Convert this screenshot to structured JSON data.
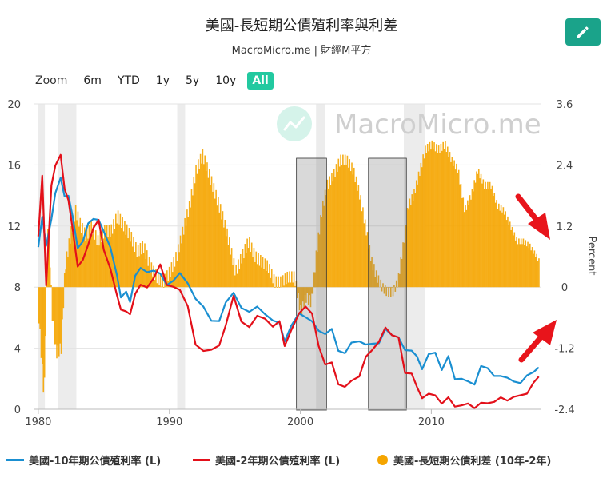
{
  "header": {
    "title": "美國-長短期公債殖利率與利差",
    "subtitle": "MacroMicro.me | 財經M平方"
  },
  "zoom": {
    "label": "Zoom",
    "options": [
      "6m",
      "YTD",
      "1y",
      "5y",
      "10y",
      "All"
    ],
    "active": "All"
  },
  "watermark": {
    "text": "MacroMicro.me"
  },
  "chart_data": {
    "type": "line",
    "title": "美國-長短期公債殖利率與利差",
    "left_axis": {
      "ticks": [
        "0",
        "4",
        "8",
        "12",
        "16",
        "20"
      ],
      "ylim": [
        0,
        20
      ]
    },
    "right_axis": {
      "label": "Percent",
      "ticks": [
        "-2.4",
        "-1.2",
        "0",
        "1.2",
        "2.4",
        "3.6"
      ],
      "ylim": [
        -2.4,
        3.6
      ]
    },
    "x_axis": {
      "ticks": [
        "1980",
        "1990",
        "2000",
        "2010"
      ],
      "xlim": [
        1979.7,
        2018.4
      ]
    },
    "recession_shading": [
      [
        1980.0,
        1980.5
      ],
      [
        1981.5,
        1982.9
      ],
      [
        1990.6,
        1991.2
      ],
      [
        2001.2,
        2001.9
      ],
      [
        2007.9,
        2009.5
      ]
    ],
    "highlight_boxes": [
      [
        1999.7,
        2002.0
      ],
      [
        2005.2,
        2008.1
      ]
    ],
    "colors": {
      "ten_year": "#1a8fd1",
      "two_year": "#e3101a",
      "spread": "#f5a500",
      "arrow": "#e8141b"
    },
    "series": [
      {
        "name": "美國-10年期公債殖利率 (L)",
        "axis": "left",
        "x": [
          1980.0,
          1980.3,
          1980.6,
          1981.0,
          1981.3,
          1981.7,
          1982.0,
          1982.3,
          1982.6,
          1983.0,
          1983.4,
          1983.8,
          1984.2,
          1984.6,
          1985.0,
          1985.5,
          1986.0,
          1986.3,
          1986.7,
          1987.0,
          1987.4,
          1987.8,
          1988.3,
          1988.8,
          1989.3,
          1989.8,
          1990.3,
          1990.8,
          1991.4,
          1992.0,
          1992.6,
          1993.2,
          1993.8,
          1994.3,
          1994.9,
          1995.5,
          1996.1,
          1996.7,
          1997.3,
          1997.9,
          1998.4,
          1998.8,
          1999.3,
          1999.9,
          2000.4,
          2000.9,
          2001.4,
          2001.9,
          2002.4,
          2002.9,
          2003.4,
          2003.9,
          2004.5,
          2005.0,
          2005.5,
          2006.0,
          2006.5,
          2007.0,
          2007.5,
          2008.0,
          2008.5,
          2008.9,
          2009.3,
          2009.8,
          2010.3,
          2010.8,
          2011.3,
          2011.8,
          2012.3,
          2012.8,
          2013.3,
          2013.8,
          2014.3,
          2014.8,
          2015.3,
          2015.8,
          2016.3,
          2016.8,
          2017.3,
          2017.8,
          2018.2
        ],
        "y": [
          10.8,
          12.5,
          10.6,
          12.6,
          14.0,
          15.3,
          14.0,
          13.8,
          12.8,
          10.5,
          11.0,
          12.2,
          12.4,
          12.5,
          11.5,
          10.6,
          8.9,
          7.4,
          7.6,
          7.2,
          8.6,
          9.4,
          8.8,
          9.2,
          8.9,
          8.0,
          8.6,
          8.8,
          8.1,
          7.3,
          6.9,
          5.8,
          5.6,
          7.1,
          7.8,
          6.6,
          6.2,
          6.7,
          6.4,
          5.9,
          5.5,
          4.6,
          5.3,
          6.2,
          6.2,
          5.6,
          5.2,
          5.0,
          5.1,
          4.0,
          3.6,
          4.3,
          4.6,
          4.2,
          4.2,
          4.5,
          5.1,
          4.9,
          4.8,
          3.7,
          4.0,
          3.3,
          2.8,
          3.5,
          3.7,
          2.7,
          3.3,
          2.1,
          2.0,
          1.7,
          1.8,
          2.7,
          2.7,
          2.3,
          2.0,
          2.2,
          1.8,
          1.6,
          2.4,
          2.3,
          2.9
        ]
      },
      {
        "name": "美國-2年期公債殖利率 (L)",
        "axis": "left",
        "x": [
          1980.0,
          1980.3,
          1980.6,
          1981.0,
          1981.3,
          1981.7,
          1982.0,
          1982.3,
          1982.6,
          1983.0,
          1983.4,
          1983.8,
          1984.2,
          1984.6,
          1985.0,
          1985.5,
          1986.0,
          1986.3,
          1986.7,
          1987.0,
          1987.4,
          1987.8,
          1988.3,
          1988.8,
          1989.3,
          1989.8,
          1990.3,
          1990.8,
          1991.4,
          1992.0,
          1992.6,
          1993.2,
          1993.8,
          1994.3,
          1994.9,
          1995.5,
          1996.1,
          1996.7,
          1997.3,
          1997.9,
          1998.4,
          1998.8,
          1999.3,
          1999.9,
          2000.4,
          2000.9,
          2001.4,
          2001.9,
          2002.4,
          2002.9,
          2003.4,
          2003.9,
          2004.5,
          2005.0,
          2005.5,
          2006.0,
          2006.5,
          2007.0,
          2007.5,
          2008.0,
          2008.5,
          2008.9,
          2009.3,
          2009.8,
          2010.3,
          2010.8,
          2011.3,
          2011.8,
          2012.3,
          2012.8,
          2013.3,
          2013.8,
          2014.3,
          2014.8,
          2015.3,
          2015.8,
          2016.3,
          2016.8,
          2017.3,
          2017.8,
          2018.2
        ],
        "y": [
          11.5,
          15.2,
          8.0,
          14.8,
          15.8,
          16.8,
          14.5,
          13.5,
          12.0,
          9.3,
          9.8,
          10.8,
          11.8,
          12.5,
          10.3,
          9.2,
          7.6,
          6.6,
          6.3,
          6.4,
          7.4,
          8.3,
          7.8,
          8.7,
          9.5,
          8.0,
          8.2,
          7.7,
          6.6,
          4.3,
          4.0,
          3.9,
          4.0,
          5.6,
          7.6,
          5.7,
          5.2,
          6.1,
          6.1,
          5.5,
          5.6,
          4.3,
          5.0,
          6.2,
          6.9,
          6.1,
          4.2,
          3.0,
          2.9,
          1.8,
          1.4,
          1.8,
          2.3,
          3.4,
          3.8,
          4.6,
          5.2,
          4.9,
          4.8,
          2.2,
          2.5,
          1.3,
          0.9,
          0.9,
          0.9,
          0.5,
          0.6,
          0.3,
          0.25,
          0.25,
          0.25,
          0.3,
          0.4,
          0.6,
          0.6,
          0.7,
          0.8,
          0.8,
          1.2,
          1.6,
          2.3
        ]
      },
      {
        "name": "美國-長短期公債利差 (10年-2年)",
        "axis": "right",
        "type": "bar",
        "x": [
          1980.0,
          1980.4,
          1980.7,
          1981.0,
          1981.3,
          1981.7,
          1982.0,
          1982.4,
          1982.8,
          1983.2,
          1983.6,
          1984.0,
          1984.5,
          1985.0,
          1985.5,
          1986.0,
          1986.5,
          1987.0,
          1987.5,
          1988.0,
          1988.5,
          1989.0,
          1989.5,
          1990.0,
          1990.5,
          1991.0,
          1991.5,
          1992.0,
          1992.5,
          1993.0,
          1993.5,
          1994.0,
          1994.5,
          1995.0,
          1995.5,
          1996.0,
          1996.5,
          1997.0,
          1997.5,
          1998.0,
          1998.5,
          1999.0,
          1999.5,
          2000.0,
          2000.4,
          2000.8,
          2001.2,
          2001.6,
          2002.0,
          2002.5,
          2003.0,
          2003.5,
          2004.0,
          2004.5,
          2005.0,
          2005.4,
          2005.8,
          2006.2,
          2006.6,
          2007.0,
          2007.4,
          2007.8,
          2008.2,
          2008.6,
          2009.0,
          2009.5,
          2010.0,
          2010.5,
          2011.0,
          2011.5,
          2012.0,
          2012.5,
          2013.0,
          2013.5,
          2014.0,
          2014.5,
          2015.0,
          2015.5,
          2016.0,
          2016.5,
          2017.0,
          2017.5,
          2018.0,
          2018.2
        ],
        "y": [
          -0.6,
          -2.2,
          1.5,
          -0.5,
          -1.3,
          -1.2,
          0.4,
          1.0,
          1.5,
          1.2,
          1.0,
          1.2,
          0.9,
          1.1,
          1.1,
          1.4,
          1.2,
          1.0,
          0.7,
          0.8,
          0.4,
          0.2,
          0.1,
          0.3,
          0.6,
          1.1,
          1.6,
          2.3,
          2.6,
          2.2,
          1.8,
          1.4,
          0.9,
          0.3,
          0.6,
          0.9,
          0.6,
          0.5,
          0.4,
          0.1,
          0.1,
          0.2,
          0.2,
          -0.5,
          -0.2,
          -0.3,
          0.7,
          1.5,
          2.0,
          2.2,
          2.5,
          2.5,
          2.3,
          1.8,
          1.1,
          0.5,
          0.2,
          0.0,
          -0.1,
          -0.1,
          0.1,
          0.8,
          1.6,
          1.8,
          2.2,
          2.7,
          2.8,
          2.7,
          2.8,
          2.5,
          2.3,
          1.5,
          1.8,
          2.3,
          2.0,
          2.0,
          1.6,
          1.5,
          1.2,
          0.9,
          0.9,
          0.8,
          0.6,
          0.5
        ]
      }
    ]
  },
  "legend": [
    {
      "label": "美國-10年期公債殖利率 (L)",
      "color": "#1a8fd1",
      "shape": "line"
    },
    {
      "label": "美國-2年期公債殖利率 (L)",
      "color": "#e3101a",
      "shape": "line"
    },
    {
      "label": "美國-長短期公債利差 (10年-2年)",
      "color": "#f5a500",
      "shape": "dot"
    }
  ]
}
